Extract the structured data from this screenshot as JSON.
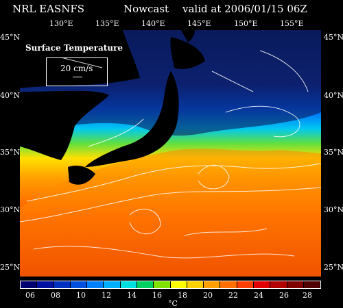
{
  "header": {
    "model": "NRL EASNFS",
    "product": "Nowcast",
    "valid": "valid at 2006/01/15 06Z"
  },
  "map": {
    "title": "Surface Temperature",
    "scale_label": "20 cm/s",
    "lon_labels": [
      "130°E",
      "135°E",
      "140°E",
      "145°E",
      "150°E",
      "155°E"
    ],
    "lat_labels_left": [
      "45°N",
      "40°N",
      "35°N",
      "30°N",
      "25°N"
    ],
    "lat_labels_right": [
      "45°N",
      "40°N",
      "35°N",
      "30°N",
      "25°N"
    ]
  },
  "colorbar": {
    "labels": [
      "06",
      "08",
      "10",
      "12",
      "14",
      "16",
      "18",
      "20",
      "22",
      "24",
      "26",
      "28"
    ],
    "unit": "°C",
    "colors": [
      "#000070",
      "#0010a0",
      "#0030c0",
      "#0050e0",
      "#0080ff",
      "#00b0ff",
      "#00e0e0",
      "#00d060",
      "#80e000",
      "#ffff00",
      "#ffd000",
      "#ffa000",
      "#ff7000",
      "#ff4000",
      "#e00000",
      "#b00000",
      "#800000",
      "#500000"
    ]
  },
  "colors": {
    "sea_cold": "#0a1a5c",
    "land": "#000000",
    "border": "#ffffff"
  }
}
